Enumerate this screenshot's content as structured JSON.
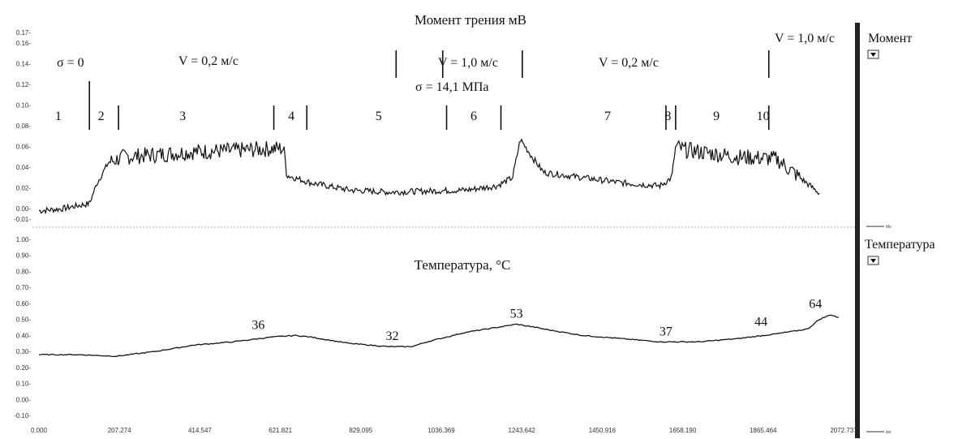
{
  "chart_data": [
    {
      "type": "line",
      "title": "Момент трения мВ",
      "yticks": [
        "0.17",
        "0.16",
        "0.14",
        "0.12",
        "0.10",
        "0.08",
        "0.06",
        "0.04",
        "0.02",
        "0.00",
        "-0.01"
      ],
      "ylim": [
        -0.01,
        0.17
      ],
      "xlim": [
        0,
        2072.737
      ],
      "annotations": {
        "sigma0": "σ = 0",
        "v1": "V = 0,2 м/с",
        "v2": "V = 1,0 м/с",
        "v3": "V = 0,2 м/с",
        "v4": "V = 1,0 м/с",
        "sigma1": "σ = 14,1 МПа"
      },
      "segments": [
        {
          "label": "1",
          "x": 50
        },
        {
          "label": "2",
          "x": 160
        },
        {
          "label": "3",
          "x": 370
        },
        {
          "label": "4",
          "x": 650
        },
        {
          "label": "5",
          "x": 875
        },
        {
          "label": "6",
          "x": 1120
        },
        {
          "label": "7",
          "x": 1465
        },
        {
          "label": "8",
          "x": 1620
        },
        {
          "label": "9",
          "x": 1745
        },
        {
          "label": "10",
          "x": 1865
        }
      ],
      "markers": [
        130,
        205,
        605,
        690,
        1050,
        1190,
        1615,
        1640,
        1880
      ],
      "markers_upper": [
        920,
        1040,
        1245,
        1880
      ],
      "series": [
        {
          "x": [
            0,
            60,
            100,
            130,
            150,
            180,
            220,
            300,
            400,
            500,
            600,
            630,
            640,
            700,
            800,
            900,
            1000,
            1100,
            1180,
            1220,
            1240,
            1270,
            1300,
            1400,
            1500,
            1600,
            1630,
            1640,
            1660,
            1700,
            1800,
            1900,
            1960,
            2010
          ],
          "values": [
            -0.002,
            0.0,
            0.003,
            0.005,
            0.025,
            0.045,
            0.05,
            0.052,
            0.055,
            0.056,
            0.058,
            0.058,
            0.032,
            0.025,
            0.018,
            0.016,
            0.017,
            0.018,
            0.022,
            0.03,
            0.067,
            0.05,
            0.035,
            0.03,
            0.025,
            0.022,
            0.03,
            0.06,
            0.057,
            0.055,
            0.05,
            0.048,
            0.03,
            0.015
          ]
        }
      ]
    },
    {
      "type": "line",
      "title": "Температура, °C",
      "yticks": [
        "1.00",
        "0.90",
        "0.80",
        "0.70",
        "0.60",
        "0.50",
        "0.40",
        "0.30",
        "0.20",
        "0.10",
        "0.00",
        "-0.10"
      ],
      "ylim": [
        -0.1,
        1.0
      ],
      "xlim": [
        0,
        2072.737
      ],
      "xticks": [
        "0.000",
        "207.274",
        "414.547",
        "621.821",
        "829.095",
        "1036.369",
        "1243.642",
        "1450.916",
        "1658.190",
        "1865.464",
        "2072.737"
      ],
      "point_labels": [
        {
          "label": "36",
          "x": 565,
          "y": 0.4
        },
        {
          "label": "32",
          "x": 910,
          "y": 0.33
        },
        {
          "label": "53",
          "x": 1230,
          "y": 0.47
        },
        {
          "label": "37",
          "x": 1615,
          "y": 0.36
        },
        {
          "label": "44",
          "x": 1860,
          "y": 0.42
        },
        {
          "label": "64",
          "x": 2000,
          "y": 0.53
        }
      ],
      "series": [
        {
          "x": [
            0,
            100,
            200,
            300,
            400,
            500,
            600,
            660,
            700,
            800,
            900,
            960,
            1000,
            1100,
            1180,
            1230,
            1280,
            1300,
            1400,
            1500,
            1600,
            1700,
            1800,
            1900,
            1980,
            2010,
            2040,
            2060
          ],
          "values": [
            0.28,
            0.28,
            0.27,
            0.3,
            0.34,
            0.36,
            0.39,
            0.4,
            0.39,
            0.35,
            0.33,
            0.33,
            0.36,
            0.42,
            0.45,
            0.47,
            0.45,
            0.44,
            0.4,
            0.38,
            0.36,
            0.36,
            0.38,
            0.41,
            0.44,
            0.5,
            0.53,
            0.51
          ]
        }
      ]
    }
  ],
  "side_panel": {
    "moment_label": "Момент",
    "temp_label": "Температура",
    "moment_legend": "Mн",
    "temp_legend": "tмг"
  },
  "colors": {
    "line": "#111111",
    "grid": "#bbbbbb",
    "bar": "#222222"
  }
}
